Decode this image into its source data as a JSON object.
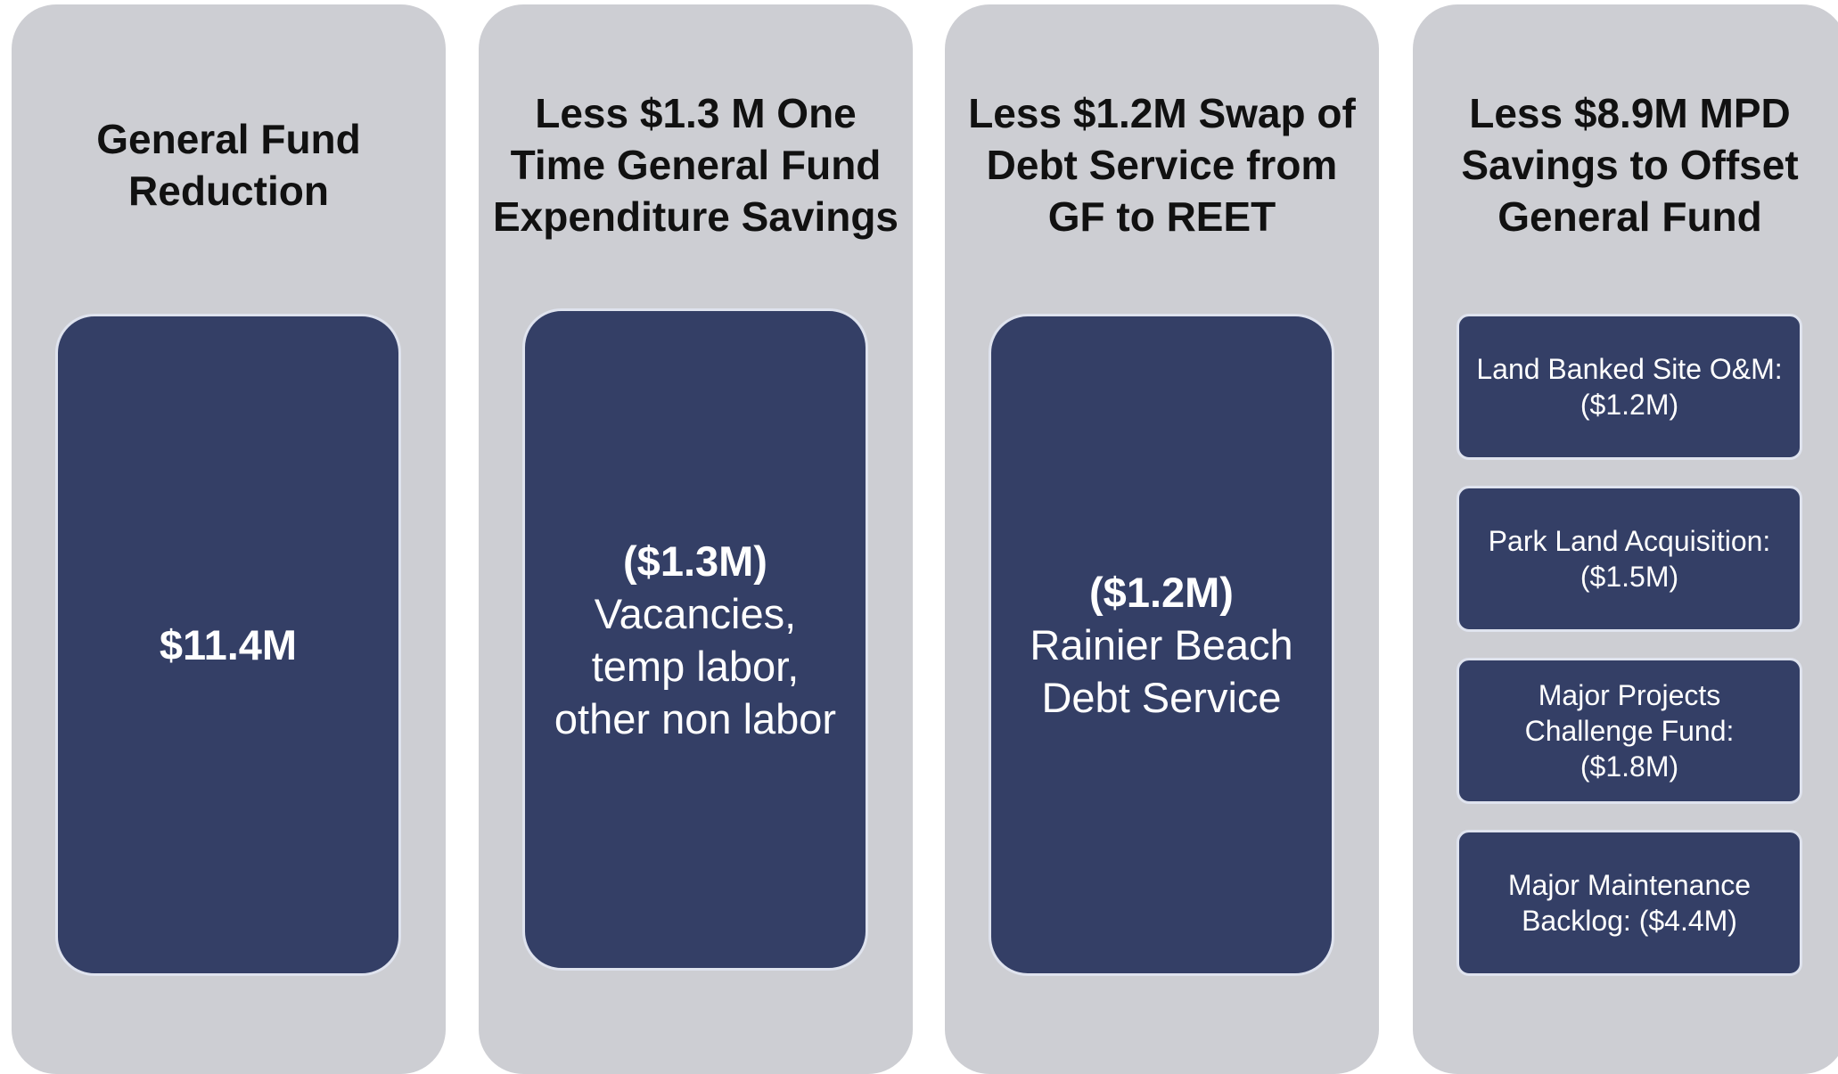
{
  "columns": [
    {
      "title": [
        "General Fund",
        "Reduction"
      ],
      "boxes": [
        {
          "heading": "$11.4M",
          "lines": []
        }
      ]
    },
    {
      "title": [
        "Less $1.3 M One",
        "Time General Fund",
        "Expenditure Savings"
      ],
      "boxes": [
        {
          "heading": "($1.3M)",
          "lines": [
            "Vacancies,",
            "temp labor,",
            "other non labor"
          ]
        }
      ]
    },
    {
      "title": [
        "Less $1.2M Swap of",
        "Debt Service from",
        "GF to REET"
      ],
      "boxes": [
        {
          "heading": "($1.2M)",
          "lines": [
            "Rainier Beach",
            "Debt Service"
          ]
        }
      ]
    },
    {
      "title": [
        "Less $8.9M MPD",
        "Savings to Offset",
        "General Fund"
      ],
      "boxes": [
        {
          "lines": [
            "Land Banked Site O&M:",
            "($1.2M)"
          ]
        },
        {
          "lines": [
            "Park Land Acquisition:",
            "($1.5M)"
          ]
        },
        {
          "lines": [
            "Major Projects",
            "Challenge Fund:",
            "($1.8M)"
          ]
        },
        {
          "lines": [
            "Major Maintenance",
            "Backlog: ($4.4M)"
          ]
        }
      ]
    }
  ]
}
